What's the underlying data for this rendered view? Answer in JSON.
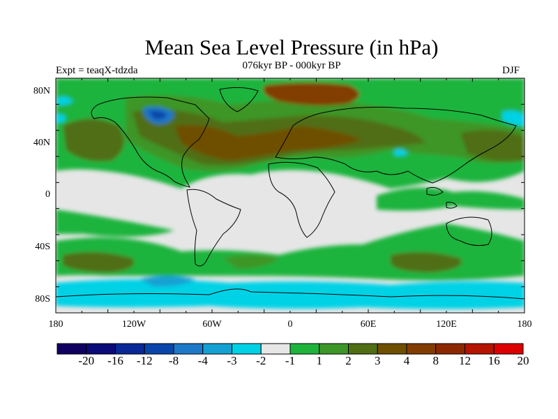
{
  "title": "Mean Sea Level Pressure (in hPa)",
  "subtitle": "076kyr BP - 000kyr BP",
  "experiment": "Expt = teaqX-tdzda",
  "season": "DJF",
  "lat_labels": [
    "80N",
    "40N",
    "0",
    "40S",
    "80S"
  ],
  "lon_labels": [
    "180",
    "120W",
    "60W",
    "0",
    "60E",
    "120E",
    "180"
  ],
  "colorbar": {
    "labels": [
      "-20",
      "-16",
      "-12",
      "-8",
      "-4",
      "-3",
      "-2",
      "-1",
      "1",
      "2",
      "3",
      "4",
      "8",
      "12",
      "16",
      "20"
    ],
    "colors": [
      "#100060",
      "#0a0a78",
      "#0a2896",
      "#0a46aa",
      "#1e78c8",
      "#14a0d2",
      "#00d2e6",
      "#e6e6e6",
      "#1eb43c",
      "#3c9628",
      "#506e14",
      "#6e5000",
      "#823c00",
      "#8c2800",
      "#b41400",
      "#dc0000"
    ]
  },
  "colors": {
    "neutral": "#e6e6e6",
    "green_light": "#1eb43c",
    "green_dark": "#3c9628",
    "olive": "#506e14",
    "brown": "#6e5000",
    "cyan": "#00d2e6",
    "blue": "#1e78c8"
  }
}
